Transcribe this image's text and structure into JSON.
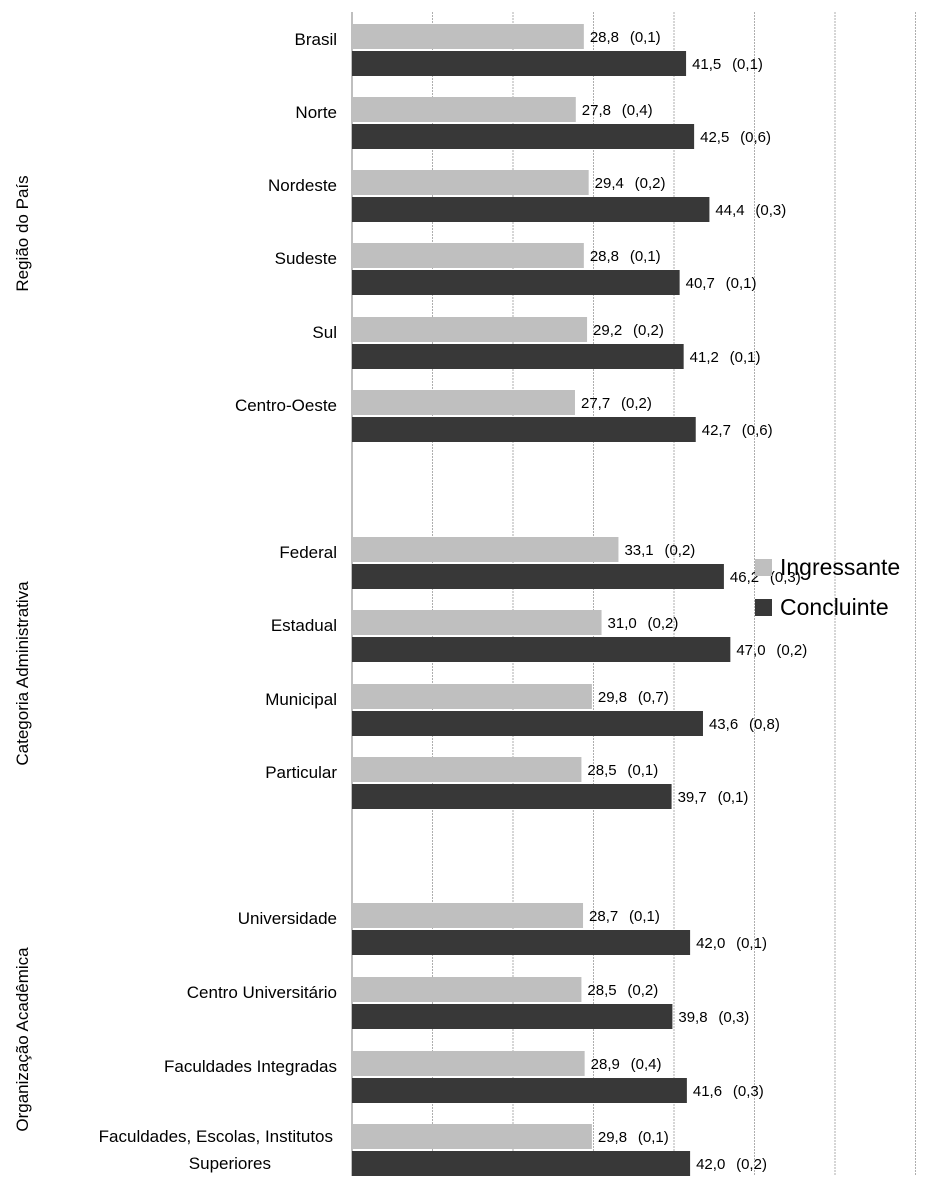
{
  "chart_data": {
    "type": "bar",
    "orientation": "horizontal",
    "grid": "vertical-gridlines",
    "legend_position": "right",
    "xlim": [
      0,
      100
    ],
    "colors": {
      "Ingressante": "#bfbfbf",
      "Concluinte": "#383838",
      "grid": "#9a9a9a"
    },
    "groups": [
      {
        "label": "Região do País",
        "categories": [
          "Brasil",
          "Norte",
          "Nordeste",
          "Sudeste",
          "Sul",
          "Centro-Oeste"
        ]
      },
      {
        "label": "Categoria Administrativa",
        "categories": [
          "Federal",
          "Estadual",
          "Municipal",
          "Particular"
        ]
      },
      {
        "label": "Organização Acadêmica",
        "categories": [
          "Universidade",
          "Centro Universitário",
          "Faculdades Integradas",
          [
            "Faculdades, Escolas, Institutos",
            "Superiores"
          ]
        ]
      }
    ],
    "series": [
      {
        "name": "Ingressante",
        "values": [
          28.8,
          27.8,
          29.4,
          28.8,
          29.2,
          27.7,
          33.1,
          31.0,
          29.8,
          28.5,
          28.7,
          28.5,
          28.9,
          29.8
        ],
        "labels": [
          "28,8",
          "27,8",
          "29,4",
          "28,8",
          "29,2",
          "27,7",
          "33,1",
          "31,0",
          "29,8",
          "28,5",
          "28,7",
          "28,5",
          "28,9",
          "29,8"
        ],
        "errors": [
          "(0,1)",
          "(0,4)",
          "(0,2)",
          "(0,1)",
          "(0,2)",
          "(0,2)",
          "(0,2)",
          "(0,2)",
          "(0,7)",
          "(0,1)",
          "(0,1)",
          "(0,2)",
          "(0,4)",
          "(0,1)"
        ]
      },
      {
        "name": "Concluinte",
        "values": [
          41.5,
          42.5,
          44.4,
          40.7,
          41.2,
          42.7,
          46.2,
          47.0,
          43.6,
          39.7,
          42.0,
          39.8,
          41.6,
          42.0
        ],
        "labels": [
          "41,5",
          "42,5",
          "44,4",
          "40,7",
          "41,2",
          "42,7",
          "46,2",
          "47,0",
          "43,6",
          "39,7",
          "42,0",
          "39,8",
          "41,6",
          "42,0"
        ],
        "errors": [
          "(0,1)",
          "(0,6)",
          "(0,3)",
          "(0,1)",
          "(0,1)",
          "(0,6)",
          "(0,3)",
          "(0,2)",
          "(0,8)",
          "(0,1)",
          "(0,1)",
          "(0,3)",
          "(0,3)",
          "(0,2)"
        ]
      }
    ]
  }
}
